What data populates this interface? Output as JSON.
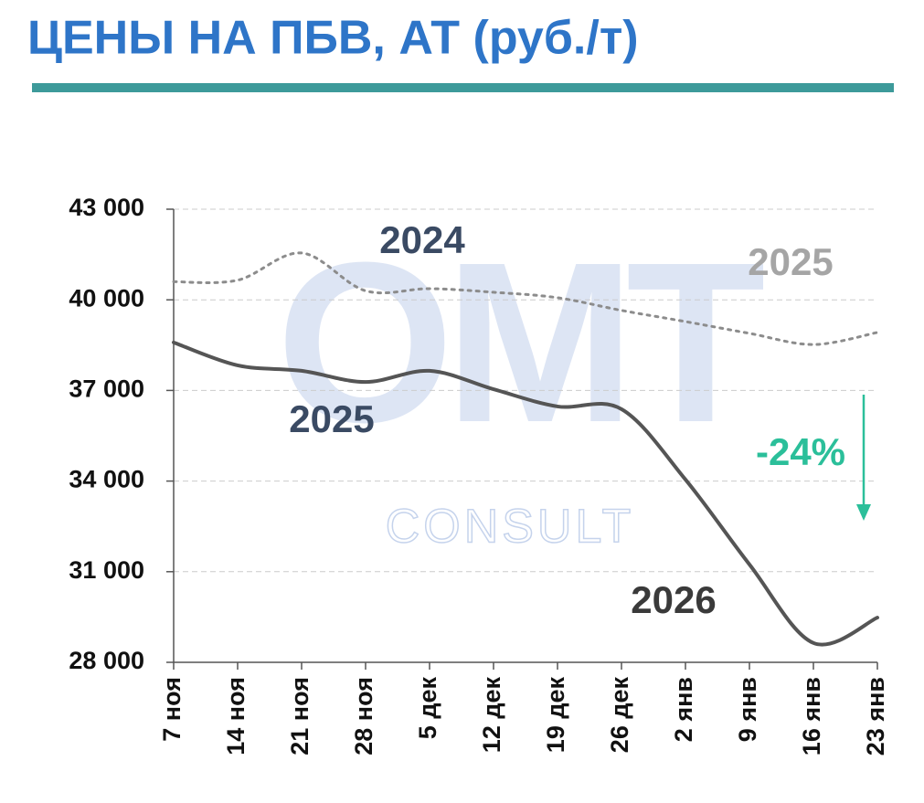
{
  "chart_data": {
    "type": "line",
    "title": "ЦЕНЫ НА ПБВ, АТ (руб./т)",
    "categories": [
      "7 ноя",
      "14 ноя",
      "21 ноя",
      "28 ноя",
      "5 дек",
      "12 дек",
      "19 дек",
      "26 дек",
      "2 янв",
      "9 янв",
      "16 янв",
      "23 янв"
    ],
    "series": [
      {
        "color": "#8c8c8c",
        "dash": "dotted",
        "values": [
          40600,
          40650,
          41550,
          40300,
          40370,
          40250,
          40070,
          39650,
          39280,
          38890,
          38520,
          38920
        ]
      },
      {
        "color": "#555555",
        "dash": "solid",
        "values": [
          38590,
          37830,
          37650,
          37280,
          37650,
          37040,
          36470,
          36380,
          34050,
          31240,
          28640,
          29480
        ]
      }
    ],
    "ylim": [
      28000,
      43000
    ],
    "yticks": [
      {
        "value": 28000,
        "label": "28 000"
      },
      {
        "value": 31000,
        "label": "31 000"
      },
      {
        "value": 34000,
        "label": "34 000"
      },
      {
        "value": 37000,
        "label": "37 000"
      },
      {
        "value": 40000,
        "label": "40 000"
      },
      {
        "value": 43000,
        "label": "43 000"
      }
    ],
    "grid": true,
    "annotations": [
      "2024",
      "2025",
      "2025",
      "2026",
      "-24%"
    ],
    "watermark": [
      "OMT",
      "CONSULT"
    ]
  }
}
